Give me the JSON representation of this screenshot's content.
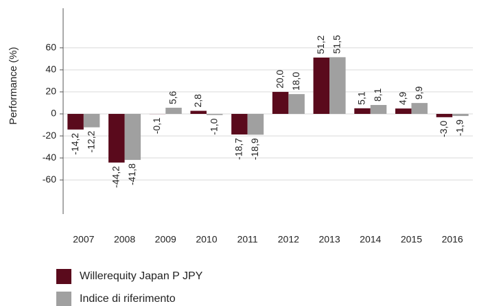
{
  "chart_data": {
    "type": "bar",
    "y_label": "Performance (%)",
    "categories": [
      "2007",
      "2008",
      "2009",
      "2010",
      "2011",
      "2012",
      "2013",
      "2014",
      "2015",
      "2016"
    ],
    "series": [
      {
        "name": "Willerequity Japan P  JPY",
        "color": "#5a0a1c",
        "values": [
          -14.2,
          -44.2,
          -0.1,
          2.8,
          -18.7,
          20.0,
          51.2,
          5.1,
          4.9,
          -3.0
        ],
        "value_labels": [
          "-14,2",
          "-44,2",
          "-0,1",
          "2,8",
          "-18,7",
          "20,0",
          "51,2",
          "5,1",
          "4,9",
          "-3,0"
        ]
      },
      {
        "name": "Indice di riferimento",
        "color": "#a0a0a0",
        "values": [
          -12.2,
          -41.8,
          5.6,
          -1.0,
          -18.9,
          18.0,
          51.5,
          8.1,
          9.9,
          -1.9
        ],
        "value_labels": [
          "-12,2",
          "-41,8",
          "5,6",
          "-1,0",
          "-18,9",
          "18,0",
          "51,5",
          "8,1",
          "9,9",
          "-1,9"
        ]
      }
    ],
    "ylim": [
      -91,
      96
    ],
    "yticks": [
      -60,
      -40,
      -20,
      0,
      20,
      40,
      60
    ],
    "grid": true,
    "legend": "bottom-left"
  }
}
